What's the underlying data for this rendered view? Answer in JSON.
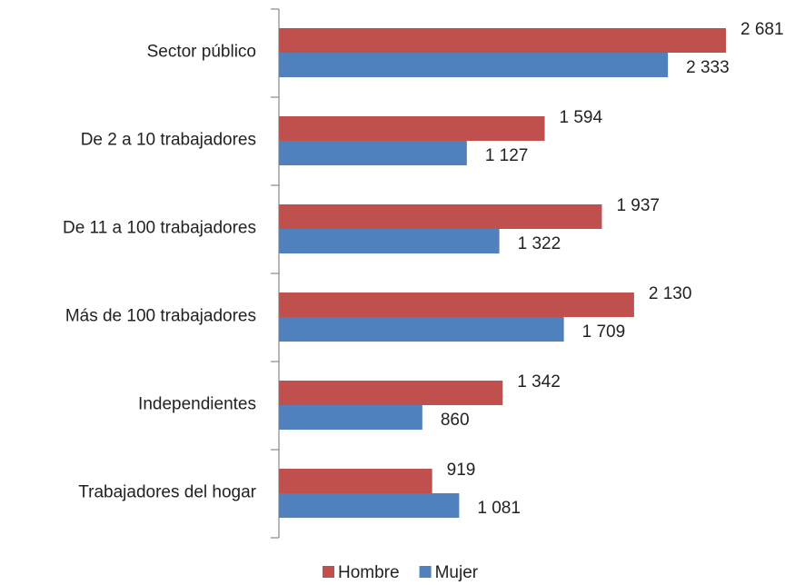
{
  "chart_data": {
    "type": "bar",
    "orientation": "horizontal",
    "categories": [
      "Sector público",
      "De 2 a 10 trabajadores",
      "De 11 a 100 trabajadores",
      "Más de 100 trabajadores",
      "Independientes",
      "Trabajadores del hogar"
    ],
    "series": [
      {
        "name": "Hombre",
        "color": "#c0504d",
        "values": [
          2681,
          1594,
          1937,
          2130,
          1342,
          919
        ],
        "value_labels": [
          "2 681",
          "1 594",
          "1 937",
          "2 130",
          "1 342",
          "919"
        ]
      },
      {
        "name": "Mujer",
        "color": "#4f81bd",
        "values": [
          2333,
          1127,
          1322,
          1709,
          860,
          1081
        ],
        "value_labels": [
          "2 333",
          "1 127",
          "1 322",
          "1 709",
          "860",
          "1 081"
        ]
      }
    ],
    "legend": "bottom"
  }
}
